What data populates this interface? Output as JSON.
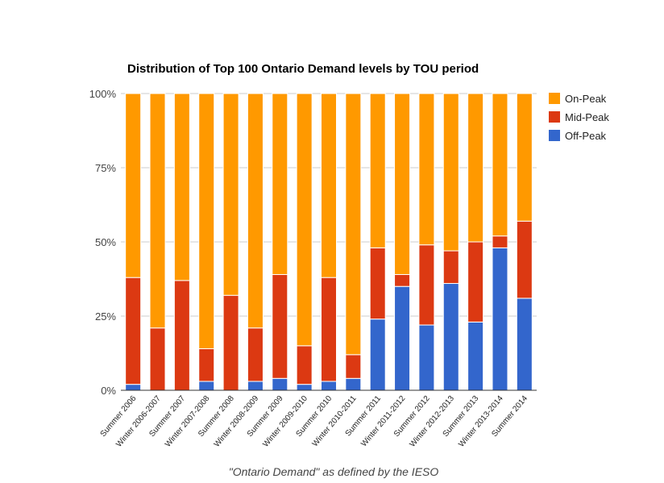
{
  "chart_data": {
    "type": "bar",
    "stacked": true,
    "title": "Distribution of Top 100 Ontario Demand levels by TOU period",
    "xlabel": "\"Ontario Demand\" as defined by the IESO",
    "ylabel": "",
    "ylim": [
      0,
      100
    ],
    "y_ticks": [
      "0%",
      "25%",
      "50%",
      "75%",
      "100%"
    ],
    "legend_position": "right",
    "categories": [
      "Summer 2006",
      "Winter 2006-2007",
      "Summer 2007",
      "Winter 2007-2008",
      "Summer 2008",
      "Winter 2008-2009",
      "Summer 2009",
      "Winter 2009-2010",
      "Summer 2010",
      "Winter 2010-2011",
      "Summer 2011",
      "Winter 2011-2012",
      "Summer 2012",
      "Winter 2012-2013",
      "Summer 2013",
      "Winter 2013-2014",
      "Summer 2014"
    ],
    "series": [
      {
        "name": "Off-Peak",
        "color": "#3366cc",
        "values": [
          2,
          0,
          0,
          3,
          0,
          3,
          4,
          2,
          3,
          4,
          24,
          35,
          22,
          36,
          23,
          48,
          31
        ]
      },
      {
        "name": "Mid-Peak",
        "color": "#dc3912",
        "values": [
          36,
          21,
          37,
          11,
          32,
          18,
          35,
          13,
          35,
          8,
          24,
          4,
          27,
          11,
          27,
          4,
          26
        ]
      },
      {
        "name": "On-Peak",
        "color": "#ff9900",
        "values": [
          62,
          79,
          63,
          86,
          68,
          79,
          61,
          85,
          62,
          88,
          52,
          61,
          51,
          53,
          50,
          48,
          43
        ]
      }
    ],
    "legend": [
      "On-Peak",
      "Mid-Peak",
      "Off-Peak"
    ]
  }
}
